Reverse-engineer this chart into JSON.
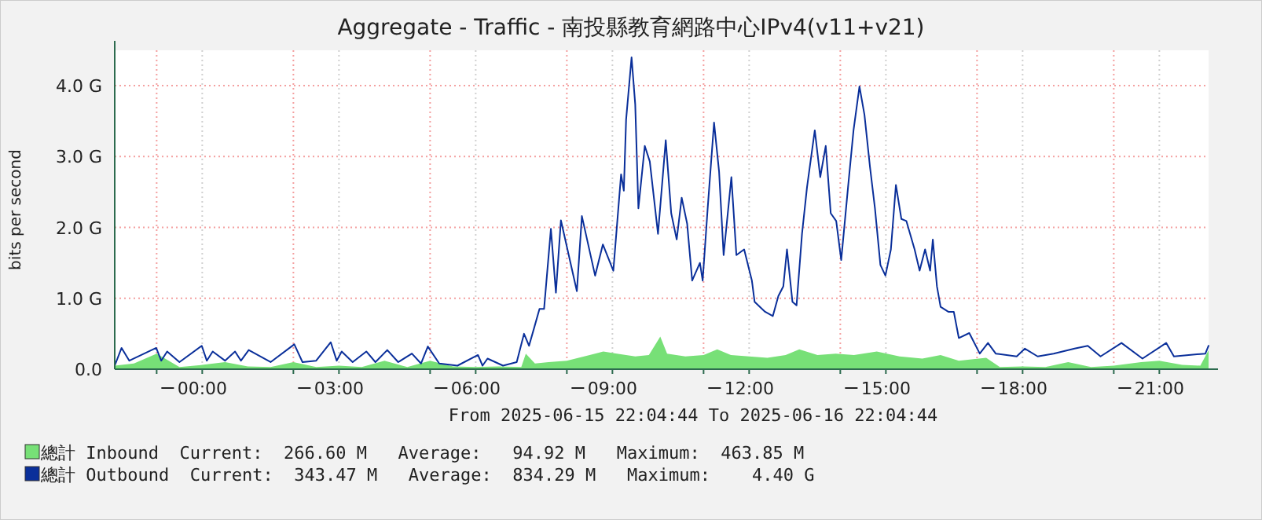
{
  "chart_data": {
    "type": "line",
    "title": "Aggregate - Traffic -  南投縣教育網路中心IPv4(v11+v21)",
    "ylabel": "bits per second",
    "xlim": [
      -1.92,
      22.08
    ],
    "xticks": [
      {
        "value": -1,
        "label": null
      },
      {
        "value": 0,
        "label": "00:00"
      },
      {
        "value": 2,
        "label": null
      },
      {
        "value": 3,
        "label": "03:00"
      },
      {
        "value": 5,
        "label": null
      },
      {
        "value": 6,
        "label": "06:00"
      },
      {
        "value": 8,
        "label": null
      },
      {
        "value": 9,
        "label": "09:00"
      },
      {
        "value": 11,
        "label": null
      },
      {
        "value": 12,
        "label": "12:00"
      },
      {
        "value": 14,
        "label": null
      },
      {
        "value": 15,
        "label": "15:00"
      },
      {
        "value": 17,
        "label": null
      },
      {
        "value": 18,
        "label": "18:00"
      },
      {
        "value": 20,
        "label": null
      },
      {
        "value": 21,
        "label": "21:00"
      }
    ],
    "ylim": [
      0,
      4.5
    ],
    "yticks": [
      {
        "value": 0,
        "label": "0.0"
      },
      {
        "value": 1,
        "label": "1.0 G"
      },
      {
        "value": 2,
        "label": "2.0 G"
      },
      {
        "value": 3,
        "label": "3.0 G"
      },
      {
        "value": 4,
        "label": "4.0 G"
      }
    ],
    "grid": true,
    "legend": "bottom left",
    "annotations": [
      "From 2025-06-15 22:04:44 To 2025-06-16 22:04:44",
      "Current:  266.60 M   Average:   94.92 M   Maximum:  463.85 M",
      "Current:  343.47 M   Average:  834.29 M   Maximum:    4.40 G"
    ],
    "series": [
      {
        "name": "總計 Inbound",
        "type": "area",
        "color": "#77e077",
        "x": [
          -1.92,
          -1.5,
          -1.0,
          -0.5,
          0,
          0.5,
          1,
          1.5,
          2,
          2.5,
          3,
          3.5,
          4,
          4.5,
          5,
          5.5,
          6,
          6.5,
          7,
          7.1,
          7.3,
          7.6,
          8,
          8.5,
          8.8,
          9.1,
          9.5,
          9.8,
          10.05,
          10.2,
          10.6,
          11,
          11.3,
          11.6,
          12,
          12.4,
          12.8,
          13.1,
          13.5,
          13.9,
          14.3,
          14.8,
          15.3,
          15.8,
          16.2,
          16.6,
          17.2,
          17.5,
          18,
          18.5,
          19,
          19.5,
          20,
          20.6,
          21,
          21.5,
          21.9,
          22.08
        ],
        "values": [
          0.05,
          0.08,
          0.22,
          0.03,
          0.06,
          0.1,
          0.04,
          0.03,
          0.1,
          0.03,
          0.05,
          0.03,
          0.12,
          0.03,
          0.12,
          0.04,
          0.03,
          0.04,
          0.03,
          0.22,
          0.08,
          0.1,
          0.12,
          0.2,
          0.25,
          0.22,
          0.18,
          0.2,
          0.46,
          0.22,
          0.18,
          0.2,
          0.28,
          0.2,
          0.18,
          0.16,
          0.2,
          0.28,
          0.2,
          0.22,
          0.2,
          0.25,
          0.18,
          0.15,
          0.2,
          0.12,
          0.16,
          0.03,
          0.04,
          0.03,
          0.1,
          0.03,
          0.05,
          0.1,
          0.12,
          0.06,
          0.05,
          0.27
        ]
      },
      {
        "name": "總計 Outbound",
        "type": "line",
        "color": "#0a2f9a",
        "x": [
          -1.92,
          -1.77,
          -1.6,
          -1.01,
          -0.9,
          -0.77,
          -0.5,
          -0.01,
          0.1,
          0.23,
          0.5,
          0.72,
          0.85,
          1.02,
          1.5,
          2.02,
          2.2,
          2.5,
          2.82,
          2.95,
          3.06,
          3.3,
          3.6,
          3.8,
          4.06,
          4.3,
          4.6,
          4.8,
          4.95,
          5.2,
          5.6,
          6.05,
          6.15,
          6.26,
          6.6,
          6.9,
          7.06,
          7.17,
          7.29,
          7.4,
          7.5,
          7.65,
          7.76,
          7.87,
          8.22,
          8.33,
          8.62,
          8.79,
          9.02,
          9.19,
          9.25,
          9.3,
          9.42,
          9.5,
          9.57,
          9.71,
          9.82,
          10.0,
          10.17,
          10.29,
          10.41,
          10.52,
          10.64,
          10.75,
          10.92,
          10.98,
          11.09,
          11.23,
          11.34,
          11.44,
          11.61,
          11.72,
          11.89,
          12.06,
          12.12,
          12.35,
          12.52,
          12.64,
          12.75,
          12.83,
          12.95,
          13.04,
          13.16,
          13.27,
          13.44,
          13.56,
          13.68,
          13.79,
          13.91,
          14.02,
          14.17,
          14.29,
          14.42,
          14.53,
          14.65,
          14.76,
          14.88,
          14.99,
          15.11,
          15.22,
          15.34,
          15.45,
          15.63,
          15.74,
          15.86,
          15.97,
          16.03,
          16.12,
          16.2,
          16.37,
          16.49,
          16.6,
          16.83,
          17.06,
          17.24,
          17.41,
          17.87,
          18.05,
          18.33,
          18.68,
          19.14,
          19.43,
          19.71,
          20.17,
          20.63,
          21.15,
          21.32,
          22.01,
          22.08
        ],
        "values": [
          0.05,
          0.3,
          0.12,
          0.3,
          0.12,
          0.25,
          0.1,
          0.33,
          0.12,
          0.25,
          0.12,
          0.25,
          0.12,
          0.27,
          0.1,
          0.35,
          0.1,
          0.12,
          0.38,
          0.12,
          0.25,
          0.1,
          0.25,
          0.1,
          0.27,
          0.1,
          0.22,
          0.08,
          0.32,
          0.08,
          0.05,
          0.2,
          0.05,
          0.15,
          0.05,
          0.1,
          0.5,
          0.33,
          0.6,
          0.85,
          0.85,
          1.98,
          1.08,
          2.1,
          1.1,
          2.16,
          1.32,
          1.76,
          1.39,
          2.75,
          2.52,
          3.52,
          4.4,
          3.74,
          2.27,
          3.15,
          2.93,
          1.91,
          3.23,
          2.2,
          1.83,
          2.42,
          2.05,
          1.25,
          1.5,
          1.25,
          2.27,
          3.48,
          2.79,
          1.61,
          2.71,
          1.61,
          1.69,
          1.25,
          0.95,
          0.81,
          0.75,
          1.03,
          1.17,
          1.69,
          0.95,
          0.9,
          1.91,
          2.57,
          3.37,
          2.71,
          3.15,
          2.2,
          2.09,
          1.54,
          2.57,
          3.37,
          3.99,
          3.59,
          2.86,
          2.27,
          1.47,
          1.32,
          1.69,
          2.6,
          2.12,
          2.09,
          1.69,
          1.39,
          1.69,
          1.39,
          1.83,
          1.17,
          0.88,
          0.81,
          0.81,
          0.44,
          0.51,
          0.22,
          0.37,
          0.22,
          0.18,
          0.29,
          0.18,
          0.22,
          0.29,
          0.33,
          0.18,
          0.37,
          0.15,
          0.37,
          0.18,
          0.22,
          0.33
        ]
      }
    ]
  }
}
